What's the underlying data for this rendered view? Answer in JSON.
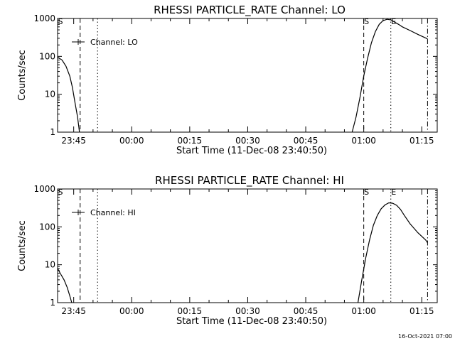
{
  "timestamp": "16-Oct-2021 07:00",
  "chart_data": [
    {
      "type": "line",
      "title": "RHESSI PARTICLE_RATE Channel: LO",
      "xlabel": "Start Time (11-Dec-08 23:40:50)",
      "ylabel": "Counts/sec",
      "yscale": "log",
      "ylim": [
        1,
        1000
      ],
      "yticks": [
        1,
        10,
        100,
        1000
      ],
      "yticklabels": [
        "1",
        "10",
        "100",
        "1000"
      ],
      "xlim": [
        "23:40:50",
        "01:19:00"
      ],
      "xticks": [
        "23:45",
        "00:00",
        "00:15",
        "00:30",
        "00:45",
        "01:00",
        "01:15"
      ],
      "legend": "upper-left",
      "grid": false,
      "markers": [
        {
          "time": "23:40:50",
          "label": "S",
          "style": "dashed"
        },
        {
          "time": "23:46:40",
          "label": "",
          "style": "dashed"
        },
        {
          "time": "23:51:10",
          "label": "",
          "style": "dotted"
        },
        {
          "time": "01:00:00",
          "label": "S",
          "style": "dashed"
        },
        {
          "time": "01:07:00",
          "label": "E",
          "style": "dotted"
        },
        {
          "time": "01:16:30",
          "label": "",
          "style": "dash-dot"
        }
      ],
      "series": [
        {
          "name": "Channel: LO",
          "segments": [
            {
              "t": [
                "23:40:50",
                "23:42:00",
                "23:43:00",
                "23:44:00",
                "23:44:40",
                "23:45:20",
                "23:46:00",
                "23:46:30"
              ],
              "y": [
                95,
                80,
                55,
                30,
                15,
                6,
                2.5,
                1
              ]
            },
            {
              "t": [
                "00:57:00",
                "00:58:00",
                "00:59:00",
                "01:00:00",
                "01:01:00",
                "01:02:00",
                "01:03:00",
                "01:04:00",
                "01:05:00",
                "01:06:00",
                "01:07:00",
                "01:08:00",
                "01:09:00",
                "01:10:00",
                "01:12:00",
                "01:14:00",
                "01:16:30"
              ],
              "y": [
                1,
                2.5,
                8,
                30,
                90,
                230,
                450,
                700,
                880,
                950,
                920,
                800,
                700,
                600,
                480,
                380,
                290
              ]
            }
          ]
        }
      ]
    },
    {
      "type": "line",
      "title": "RHESSI PARTICLE_RATE Channel: HI",
      "xlabel": "Start Time (11-Dec-08 23:40:50)",
      "ylabel": "Counts/sec",
      "yscale": "log",
      "ylim": [
        1,
        1000
      ],
      "yticks": [
        1,
        10,
        100,
        1000
      ],
      "yticklabels": [
        "1",
        "10",
        "100",
        "1000"
      ],
      "xlim": [
        "23:40:50",
        "01:19:00"
      ],
      "xticks": [
        "23:45",
        "00:00",
        "00:15",
        "00:30",
        "00:45",
        "01:00",
        "01:15"
      ],
      "legend": "upper-left",
      "grid": false,
      "markers": [
        {
          "time": "23:40:50",
          "label": "S",
          "style": "dashed"
        },
        {
          "time": "23:46:40",
          "label": "",
          "style": "dashed"
        },
        {
          "time": "23:51:10",
          "label": "",
          "style": "dotted"
        },
        {
          "time": "01:00:00",
          "label": "S",
          "style": "dashed"
        },
        {
          "time": "01:07:00",
          "label": "E",
          "style": "dotted"
        },
        {
          "time": "01:16:30",
          "label": "",
          "style": "dash-dot"
        }
      ],
      "series": [
        {
          "name": "Channel: HI",
          "segments": [
            {
              "t": [
                "23:40:50",
                "23:41:30",
                "23:42:30",
                "23:43:20",
                "23:44:00",
                "23:44:30"
              ],
              "y": [
                8,
                6,
                4,
                2.5,
                1.5,
                1
              ]
            },
            {
              "t": [
                "00:58:30",
                "00:59:30",
                "01:00:30",
                "01:01:30",
                "01:02:30",
                "01:03:30",
                "01:04:30",
                "01:05:30",
                "01:06:30",
                "01:07:30",
                "01:08:30",
                "01:09:30",
                "01:10:30",
                "01:12:00",
                "01:14:00",
                "01:16:00",
                "01:16:30"
              ],
              "y": [
                1,
                4,
                15,
                45,
                110,
                200,
                300,
                380,
                430,
                420,
                370,
                290,
                200,
                120,
                70,
                45,
                38
              ]
            }
          ]
        }
      ]
    }
  ]
}
